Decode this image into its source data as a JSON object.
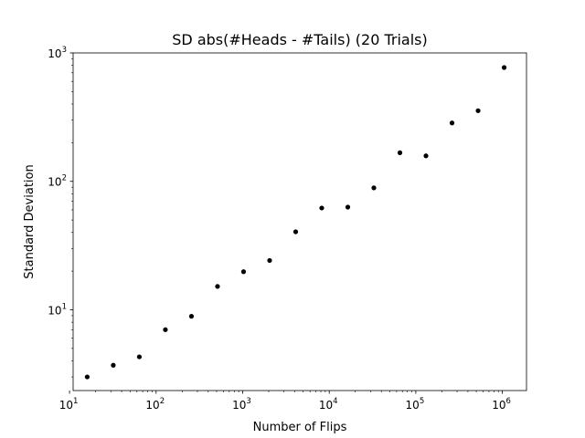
{
  "chart_data": {
    "type": "scatter",
    "title": "SD abs(#Heads - #Tails) (20 Trials)",
    "xlabel": "Number of Flips",
    "ylabel": "Standard Deviation",
    "xscale": "log",
    "yscale": "log",
    "xlim": [
      11,
      1900000
    ],
    "ylim": [
      2.35,
      1000
    ],
    "grid": false,
    "legend": "none",
    "marker_color": "#000000",
    "x_ticks": [
      {
        "value": 10,
        "base": "10",
        "exp": "1"
      },
      {
        "value": 100,
        "base": "10",
        "exp": "2"
      },
      {
        "value": 1000,
        "base": "10",
        "exp": "3"
      },
      {
        "value": 10000,
        "base": "10",
        "exp": "4"
      },
      {
        "value": 100000,
        "base": "10",
        "exp": "5"
      },
      {
        "value": 1000000,
        "base": "10",
        "exp": "6"
      }
    ],
    "y_ticks": [
      {
        "value": 10,
        "base": "10",
        "exp": "1"
      },
      {
        "value": 100,
        "base": "10",
        "exp": "2"
      },
      {
        "value": 1000,
        "base": "10",
        "exp": "3"
      }
    ],
    "x": [
      16,
      32,
      64,
      128,
      256,
      512,
      1024,
      2048,
      4096,
      8192,
      16384,
      32768,
      65536,
      131072,
      262144,
      524288,
      1048576
    ],
    "y": [
      3.0,
      3.7,
      4.3,
      7.0,
      8.9,
      15.2,
      19.8,
      24.2,
      40.5,
      62.0,
      63.0,
      89.0,
      167,
      158,
      285,
      355,
      770
    ]
  }
}
